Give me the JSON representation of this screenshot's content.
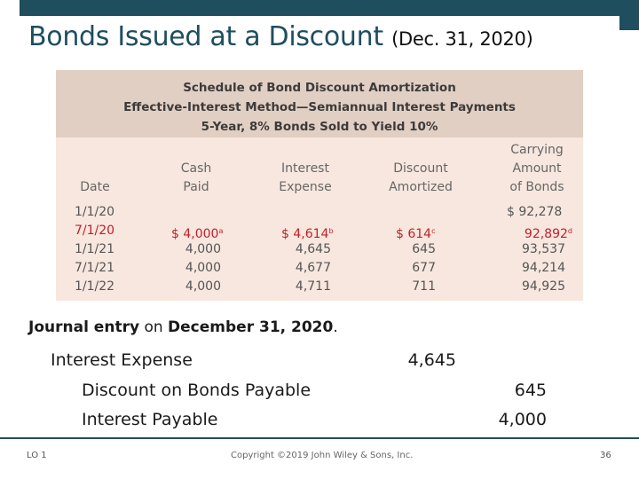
{
  "slide": {
    "title": "Bonds Issued at a Discount",
    "title_sub": "(Dec. 31, 2020)"
  },
  "schedule": {
    "header_lines": [
      "Schedule of Bond Discount Amortization",
      "Effective-Interest Method—Semiannual Interest Payments",
      "5-Year, 8% Bonds Sold to Yield 10%"
    ],
    "columns": {
      "date": [
        "Date"
      ],
      "cash_paid": [
        "Cash",
        "Paid"
      ],
      "interest_expense": [
        "Interest",
        "Expense"
      ],
      "discount_amortized": [
        "Discount",
        "Amortized"
      ],
      "carrying_amount": [
        "Carrying",
        "Amount",
        "of Bonds"
      ]
    },
    "rows": [
      {
        "date": "1/1/20",
        "cash_paid": "",
        "interest_expense": "",
        "discount_amortized": "",
        "carrying_amount": "$ 92,278"
      },
      {
        "date": "7/1/20",
        "cash_paid": "$ 4,000",
        "cash_note": "a",
        "interest_expense": "$ 4,614",
        "interest_note": "b",
        "discount_amortized": "$ 614",
        "discount_note": "c",
        "carrying_amount": "92,892",
        "carrying_note": "d",
        "highlight": true
      },
      {
        "date": "1/1/21",
        "cash_paid": "4,000",
        "interest_expense": "4,645",
        "discount_amortized": "645",
        "carrying_amount": "93,537"
      },
      {
        "date": "7/1/21",
        "cash_paid": "4,000",
        "interest_expense": "4,677",
        "discount_amortized": "677",
        "carrying_amount": "94,214"
      },
      {
        "date": "1/1/22",
        "cash_paid": "4,000",
        "interest_expense": "4,711",
        "discount_amortized": "711",
        "carrying_amount": "94,925"
      }
    ],
    "colors": {
      "highlight": "#c41e2a",
      "header_bg": "#e2cfc4",
      "body_bg": "#f7e7de"
    }
  },
  "journal": {
    "caption_part1": "Journal entry",
    "caption_part2": " on ",
    "caption_part3": "December 31, 2020",
    "caption_part4": ".",
    "lines": [
      {
        "account": "Interest Expense",
        "debit": "4,645",
        "credit": ""
      },
      {
        "account": "Discount on Bonds Payable",
        "debit": "",
        "credit": "645"
      },
      {
        "account": "Interest Payable",
        "debit": "",
        "credit": "4,000"
      }
    ]
  },
  "footer": {
    "left": "LO 1",
    "center": "Copyright ©2019 John Wiley & Sons, Inc.",
    "page": "36"
  },
  "theme": {
    "accent": "#1f4e5f"
  }
}
